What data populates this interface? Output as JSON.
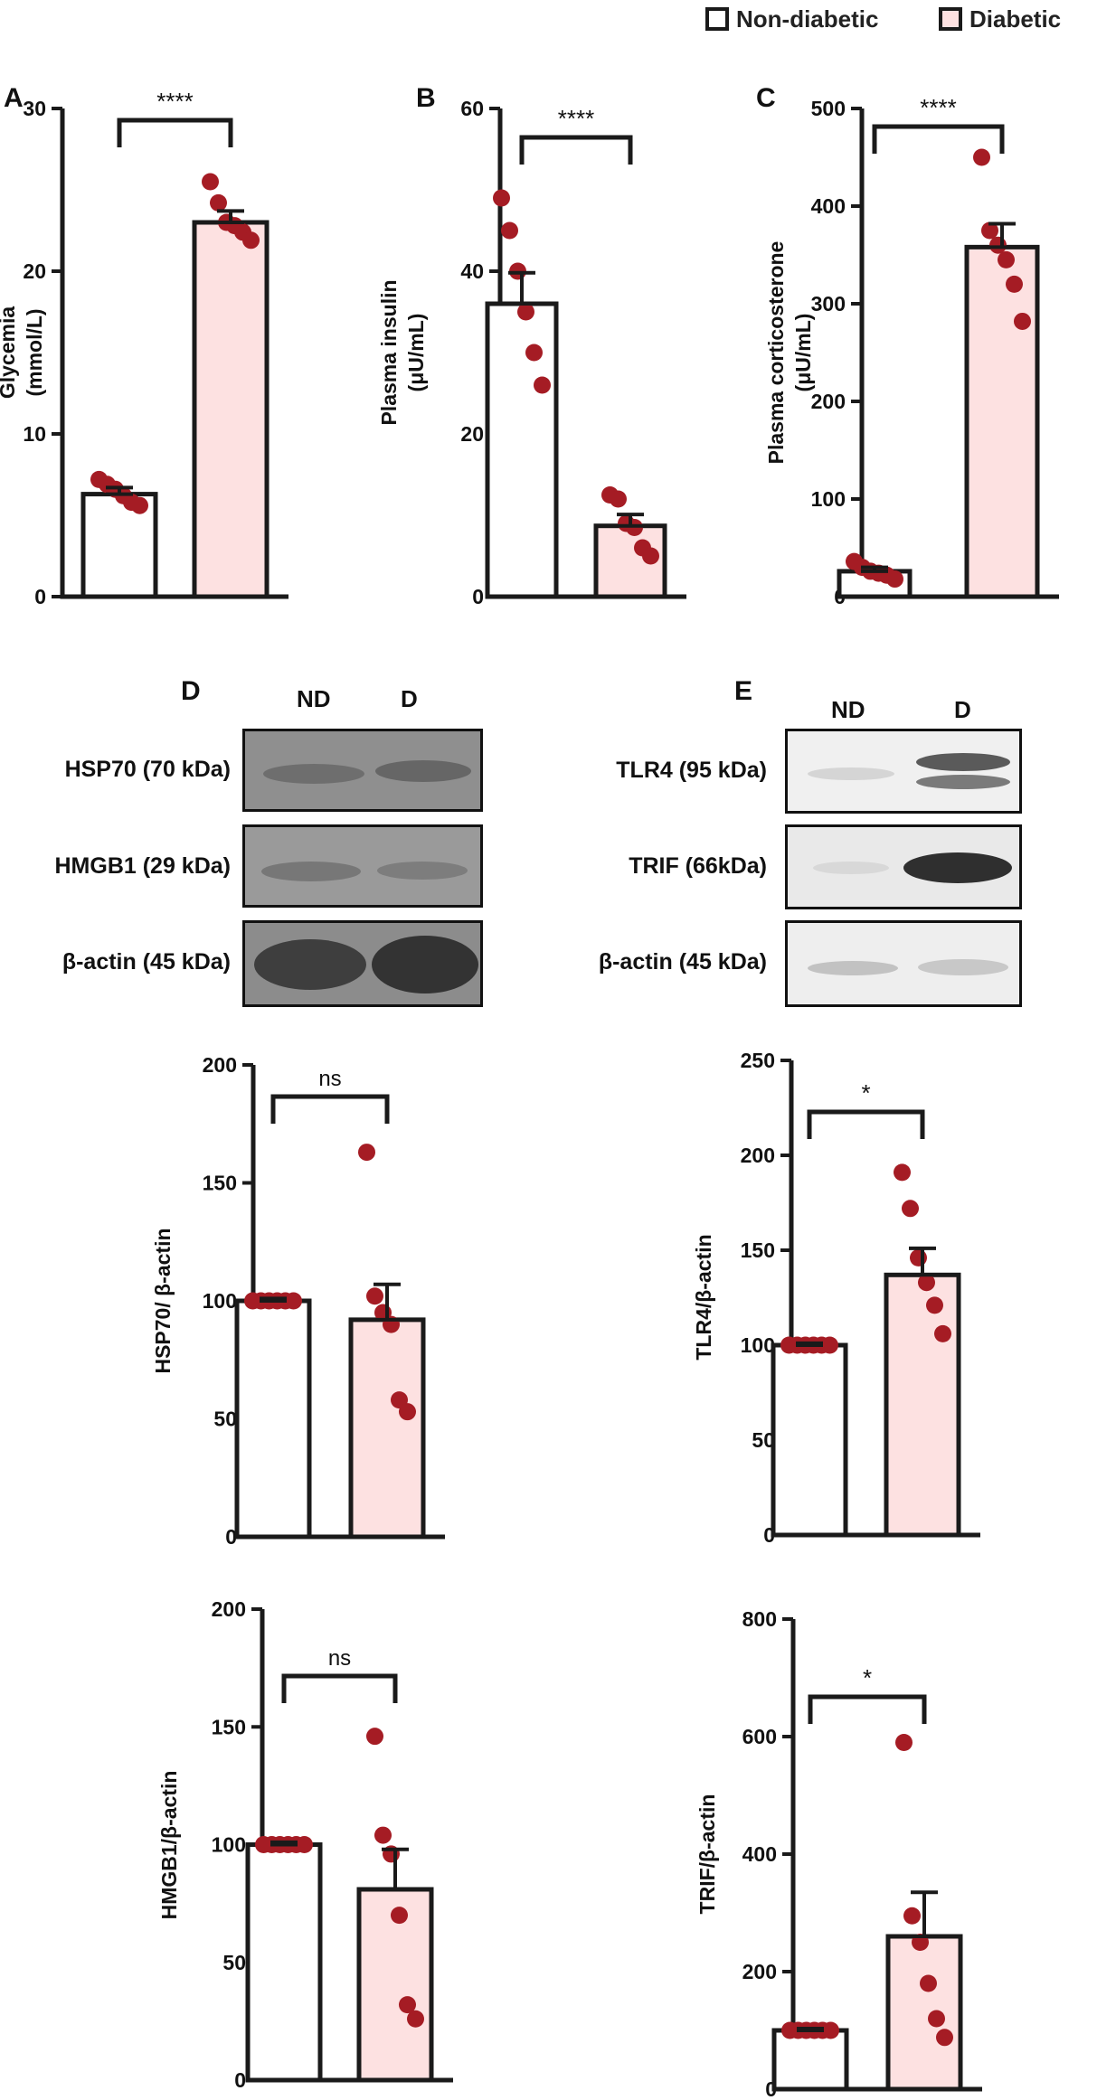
{
  "legend": {
    "non_diabetic_label": "Non-diabetic",
    "diabetic_label": "Diabetic"
  },
  "colors": {
    "non_diabetic_fill": "#ffffff",
    "diabetic_fill": "#fde1e1",
    "point": "#a51c24",
    "axis": "#1a1a1a"
  },
  "panels": {
    "A": "A",
    "B": "B",
    "C": "C",
    "D": "D",
    "E": "E"
  },
  "blots": {
    "D": {
      "lane_nd": "ND",
      "lane_d": "D",
      "rows": [
        "HSP70 (70 kDa)",
        "HMGB1 (29 kDa)",
        "β-actin (45 kDa)"
      ]
    },
    "E": {
      "lane_nd": "ND",
      "lane_d": "D",
      "rows": [
        "TLR4 (95 kDa)",
        "TRIF (66kDa)",
        "β-actin (45 kDa)"
      ]
    }
  },
  "chart_data": [
    {
      "id": "A",
      "type": "bar",
      "title": "",
      "ylabel": [
        "Glycemia",
        "(mmol/L)"
      ],
      "ylim": [
        0,
        30
      ],
      "yticks": [
        0,
        10,
        20,
        30
      ],
      "categories": [
        "Non-diabetic",
        "Diabetic"
      ],
      "values": [
        6.3,
        23.0
      ],
      "errors": [
        0.4,
        0.7
      ],
      "points": [
        [
          7.2,
          6.9,
          6.6,
          6.2,
          5.8,
          5.6
        ],
        [
          25.5,
          24.2,
          23.0,
          22.8,
          22.4,
          21.9
        ]
      ],
      "significance": "****"
    },
    {
      "id": "B",
      "type": "bar",
      "title": "",
      "ylabel": [
        "Plasma insulin",
        "(μU/mL)"
      ],
      "ylim": [
        0,
        60
      ],
      "yticks": [
        0,
        20,
        40,
        60
      ],
      "categories": [
        "Non-diabetic",
        "Diabetic"
      ],
      "values": [
        36,
        8.7
      ],
      "errors": [
        3.8,
        1.4
      ],
      "points": [
        [
          49,
          45,
          40,
          35,
          30,
          26
        ],
        [
          12.5,
          12.0,
          9.0,
          8.5,
          6.0,
          5.0
        ]
      ],
      "significance": "****"
    },
    {
      "id": "C",
      "type": "bar",
      "title": "",
      "ylabel": [
        "Plasma corticosterone",
        "(μU/mL)"
      ],
      "ylim": [
        0,
        500
      ],
      "yticks": [
        0,
        100,
        200,
        300,
        400,
        500
      ],
      "categories": [
        "Non-diabetic",
        "Diabetic"
      ],
      "values": [
        26,
        358
      ],
      "errors": [
        4,
        24
      ],
      "points": [
        [
          36,
          30,
          26,
          24,
          22,
          18
        ],
        [
          450,
          375,
          360,
          345,
          320,
          282
        ]
      ],
      "significance": "****"
    },
    {
      "id": "HSP70",
      "type": "bar",
      "title": "",
      "ylabel": [
        "HSP70/ β-actin"
      ],
      "ylim": [
        0,
        200
      ],
      "yticks": [
        0,
        50,
        100,
        150,
        200
      ],
      "categories": [
        "ND",
        "D"
      ],
      "values": [
        100,
        92
      ],
      "errors": [
        1,
        15
      ],
      "points": [
        [
          100,
          100,
          100,
          100,
          100,
          100
        ],
        [
          163,
          102,
          95,
          90,
          58,
          53
        ]
      ],
      "significance": "ns"
    },
    {
      "id": "TLR4",
      "type": "bar",
      "title": "",
      "ylabel": [
        "TLR4/β-actin"
      ],
      "ylim": [
        0,
        250
      ],
      "yticks": [
        0,
        50,
        100,
        150,
        200,
        250
      ],
      "categories": [
        "ND",
        "D"
      ],
      "values": [
        100,
        137
      ],
      "errors": [
        1,
        14
      ],
      "points": [
        [
          100,
          100,
          100,
          100,
          100,
          100
        ],
        [
          191,
          172,
          146,
          133,
          121,
          106
        ]
      ],
      "significance": "*"
    },
    {
      "id": "HMGB1",
      "type": "bar",
      "title": "",
      "ylabel": [
        "HMGB1/β-actin"
      ],
      "ylim": [
        0,
        200
      ],
      "yticks": [
        0,
        50,
        100,
        150,
        200
      ],
      "categories": [
        "ND",
        "D"
      ],
      "values": [
        100,
        81
      ],
      "errors": [
        1,
        17
      ],
      "points": [
        [
          100,
          100,
          100,
          100,
          100,
          100
        ],
        [
          146,
          104,
          96,
          70,
          32,
          26
        ]
      ],
      "significance": "ns"
    },
    {
      "id": "TRIF",
      "type": "bar",
      "title": "",
      "ylabel": [
        "TRIF/β-actin"
      ],
      "ylim": [
        0,
        800
      ],
      "yticks": [
        0,
        200,
        400,
        600,
        800
      ],
      "categories": [
        "ND",
        "D"
      ],
      "values": [
        100,
        260
      ],
      "errors": [
        3,
        75
      ],
      "points": [
        [
          100,
          100,
          100,
          100,
          100,
          100
        ],
        [
          590,
          295,
          250,
          180,
          120,
          88
        ]
      ],
      "significance": "*"
    }
  ]
}
